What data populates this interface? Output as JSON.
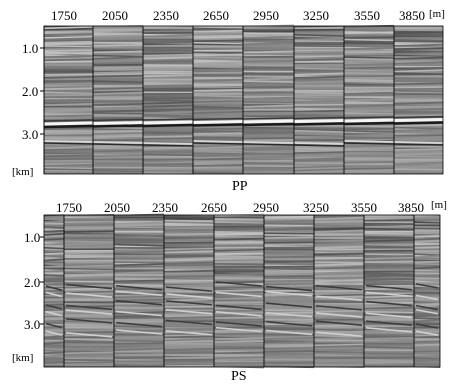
{
  "figure": {
    "panels": [
      {
        "caption": "PP",
        "offsets": [
          "1750",
          "2050",
          "2350",
          "2650",
          "2950",
          "3250",
          "3550",
          "3850"
        ],
        "offset_unit": "[m]",
        "time_ticks": [
          "1.0",
          "2.0",
          "3.0"
        ],
        "time_unit": "[km]"
      },
      {
        "caption": "PS",
        "offsets": [
          "1750",
          "2050",
          "2350",
          "2650",
          "2950",
          "3250",
          "3550",
          "3850"
        ],
        "offset_unit": "[m]",
        "time_ticks": [
          "1.0",
          "2.0",
          "3.0"
        ],
        "time_unit": "[km]"
      }
    ],
    "colors": {
      "background": "#ffffff",
      "trace_mid": "#8a8a8a",
      "separator": "#111111"
    }
  }
}
